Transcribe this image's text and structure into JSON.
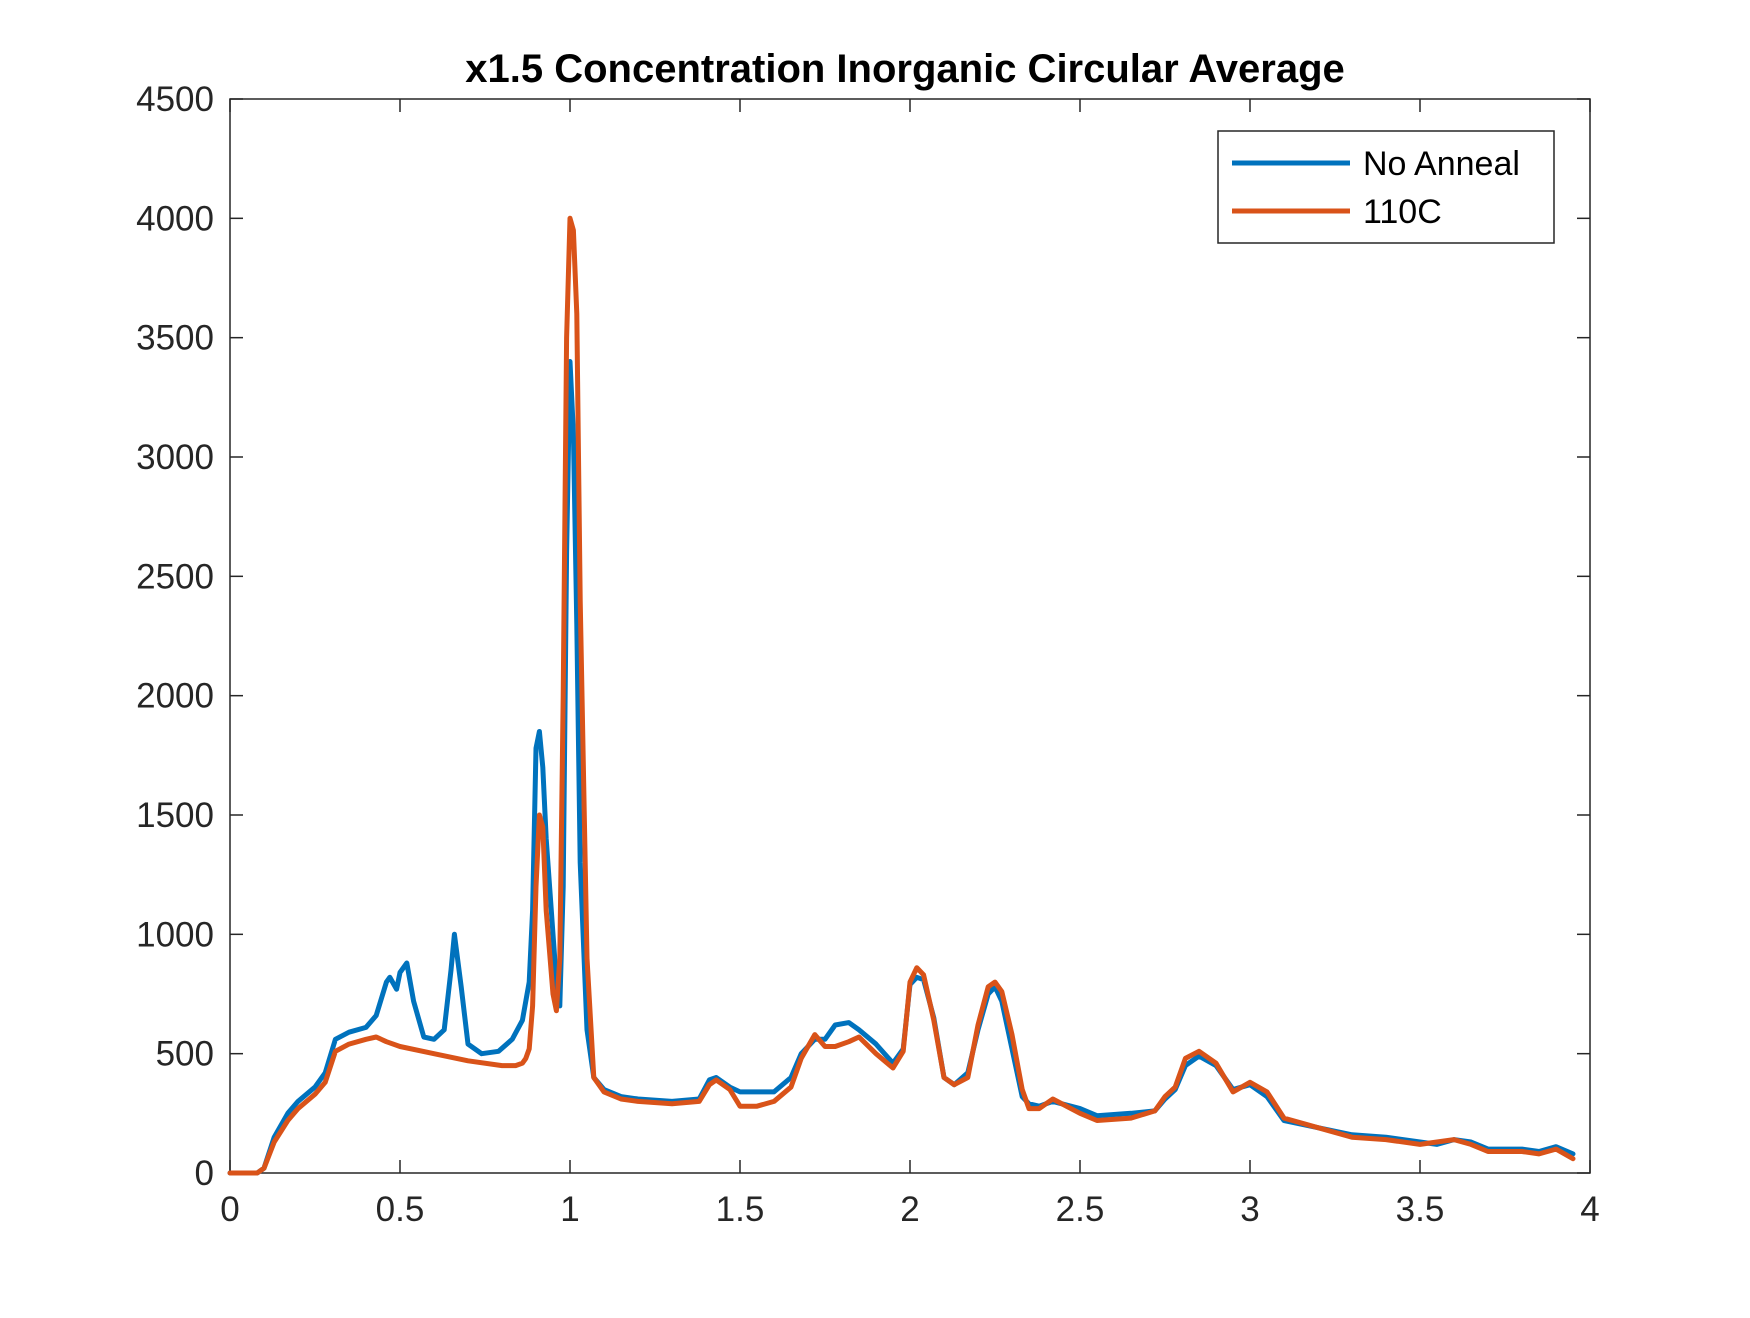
{
  "chart_data": {
    "type": "line",
    "title": "x1.5 Concentration Inorganic Circular Average",
    "xlabel": "",
    "ylabel": "",
    "xlim": [
      0,
      4
    ],
    "ylim": [
      0,
      4500
    ],
    "xticks": [
      0,
      0.5,
      1,
      1.5,
      2,
      2.5,
      3,
      3.5,
      4
    ],
    "xtick_labels": [
      "0",
      "0.5",
      "1",
      "1.5",
      "2",
      "2.5",
      "3",
      "3.5",
      "4"
    ],
    "yticks": [
      0,
      500,
      1000,
      1500,
      2000,
      2500,
      3000,
      3500,
      4000,
      4500
    ],
    "ytick_labels": [
      "0",
      "500",
      "1000",
      "1500",
      "2000",
      "2500",
      "3000",
      "3500",
      "4000",
      "4500"
    ],
    "grid": false,
    "legend_position": "top-right",
    "series": [
      {
        "name": "No Anneal",
        "color": "#0072BD",
        "x": [
          0,
          0.08,
          0.1,
          0.13,
          0.17,
          0.2,
          0.25,
          0.28,
          0.31,
          0.35,
          0.4,
          0.43,
          0.46,
          0.47,
          0.49,
          0.5,
          0.52,
          0.54,
          0.57,
          0.6,
          0.63,
          0.65,
          0.66,
          0.68,
          0.7,
          0.74,
          0.79,
          0.83,
          0.86,
          0.88,
          0.89,
          0.9,
          0.91,
          0.92,
          0.93,
          0.95,
          0.96,
          0.97,
          0.98,
          0.99,
          1.0,
          1.01,
          1.02,
          1.03,
          1.05,
          1.07,
          1.1,
          1.15,
          1.2,
          1.3,
          1.38,
          1.41,
          1.43,
          1.47,
          1.5,
          1.55,
          1.6,
          1.65,
          1.68,
          1.72,
          1.75,
          1.78,
          1.82,
          1.85,
          1.9,
          1.95,
          1.98,
          2.0,
          2.02,
          2.04,
          2.07,
          2.1,
          2.13,
          2.17,
          2.2,
          2.23,
          2.25,
          2.27,
          2.3,
          2.33,
          2.35,
          2.38,
          2.42,
          2.5,
          2.55,
          2.65,
          2.72,
          2.75,
          2.78,
          2.81,
          2.85,
          2.9,
          2.95,
          3.0,
          3.05,
          3.1,
          3.2,
          3.3,
          3.4,
          3.5,
          3.55,
          3.6,
          3.65,
          3.7,
          3.8,
          3.85,
          3.9,
          3.95
        ],
        "y": [
          0,
          0,
          20,
          150,
          250,
          300,
          360,
          420,
          560,
          590,
          610,
          660,
          800,
          820,
          770,
          840,
          880,
          720,
          570,
          560,
          600,
          850,
          1000,
          780,
          540,
          500,
          510,
          560,
          640,
          800,
          1100,
          1780,
          1850,
          1700,
          1400,
          1000,
          800,
          700,
          1200,
          2600,
          3400,
          3100,
          2300,
          1300,
          600,
          400,
          350,
          320,
          310,
          300,
          310,
          390,
          400,
          360,
          340,
          340,
          340,
          400,
          500,
          560,
          560,
          620,
          630,
          600,
          540,
          460,
          520,
          790,
          820,
          810,
          650,
          400,
          370,
          420,
          600,
          750,
          780,
          720,
          520,
          320,
          290,
          280,
          300,
          270,
          240,
          250,
          260,
          310,
          350,
          450,
          490,
          450,
          350,
          370,
          320,
          220,
          190,
          160,
          150,
          130,
          120,
          140,
          130,
          100,
          100,
          90,
          110,
          80
        ]
      },
      {
        "name": "110C",
        "color": "#D95319",
        "x": [
          0,
          0.08,
          0.1,
          0.13,
          0.17,
          0.2,
          0.25,
          0.28,
          0.31,
          0.35,
          0.4,
          0.43,
          0.46,
          0.5,
          0.6,
          0.7,
          0.8,
          0.84,
          0.86,
          0.87,
          0.88,
          0.89,
          0.9,
          0.91,
          0.92,
          0.93,
          0.95,
          0.96,
          0.97,
          0.98,
          0.99,
          1.0,
          1.01,
          1.02,
          1.03,
          1.05,
          1.07,
          1.1,
          1.15,
          1.2,
          1.3,
          1.38,
          1.41,
          1.43,
          1.47,
          1.5,
          1.55,
          1.6,
          1.65,
          1.68,
          1.72,
          1.75,
          1.78,
          1.82,
          1.85,
          1.9,
          1.95,
          1.98,
          2.0,
          2.02,
          2.04,
          2.07,
          2.1,
          2.13,
          2.17,
          2.2,
          2.23,
          2.25,
          2.27,
          2.3,
          2.33,
          2.35,
          2.38,
          2.42,
          2.5,
          2.55,
          2.65,
          2.72,
          2.75,
          2.78,
          2.81,
          2.85,
          2.9,
          2.95,
          3.0,
          3.05,
          3.1,
          3.2,
          3.3,
          3.4,
          3.5,
          3.55,
          3.6,
          3.65,
          3.7,
          3.8,
          3.85,
          3.9,
          3.95
        ],
        "y": [
          0,
          0,
          20,
          130,
          220,
          270,
          330,
          380,
          510,
          540,
          560,
          570,
          550,
          530,
          500,
          470,
          450,
          450,
          460,
          480,
          520,
          700,
          1200,
          1500,
          1450,
          1100,
          750,
          680,
          900,
          2000,
          3500,
          4000,
          3950,
          3600,
          2400,
          900,
          400,
          340,
          310,
          300,
          290,
          300,
          370,
          390,
          350,
          280,
          280,
          300,
          360,
          480,
          580,
          530,
          530,
          550,
          570,
          500,
          440,
          510,
          800,
          860,
          830,
          640,
          400,
          370,
          400,
          620,
          780,
          800,
          760,
          580,
          350,
          270,
          270,
          310,
          250,
          220,
          230,
          260,
          320,
          360,
          480,
          510,
          460,
          340,
          380,
          340,
          230,
          190,
          150,
          140,
          120,
          130,
          140,
          120,
          90,
          90,
          80,
          100,
          60
        ]
      }
    ]
  }
}
